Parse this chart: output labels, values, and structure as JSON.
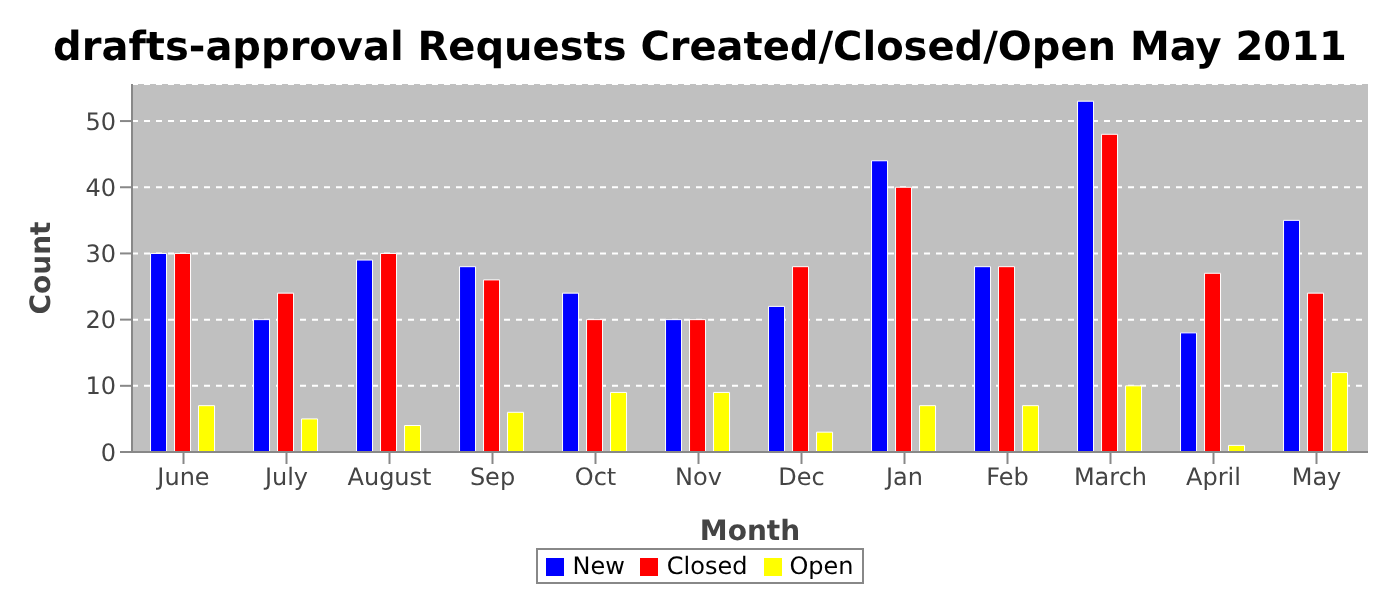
{
  "chart_data": {
    "type": "bar",
    "title": "drafts-approval Requests Created/Closed/Open May 2011",
    "xlabel": "Month",
    "ylabel": "Count",
    "categories": [
      "June",
      "July",
      "August",
      "Sep",
      "Oct",
      "Nov",
      "Dec",
      "Jan",
      "Feb",
      "March",
      "April",
      "May"
    ],
    "series": [
      {
        "name": "New",
        "color": "#0000ff",
        "values": [
          30,
          20,
          29,
          28,
          24,
          20,
          22,
          44,
          28,
          53,
          18,
          35
        ]
      },
      {
        "name": "Closed",
        "color": "#ff0000",
        "values": [
          30,
          24,
          30,
          26,
          20,
          20,
          28,
          40,
          28,
          48,
          27,
          24
        ]
      },
      {
        "name": "Open",
        "color": "#ffff00",
        "values": [
          7,
          5,
          4,
          6,
          9,
          9,
          3,
          7,
          7,
          10,
          1,
          12
        ]
      }
    ],
    "ylim": [
      0,
      55.6
    ],
    "yticks": [
      0,
      10,
      20,
      30,
      40,
      50
    ],
    "grid": "y",
    "legend": "bottom"
  }
}
